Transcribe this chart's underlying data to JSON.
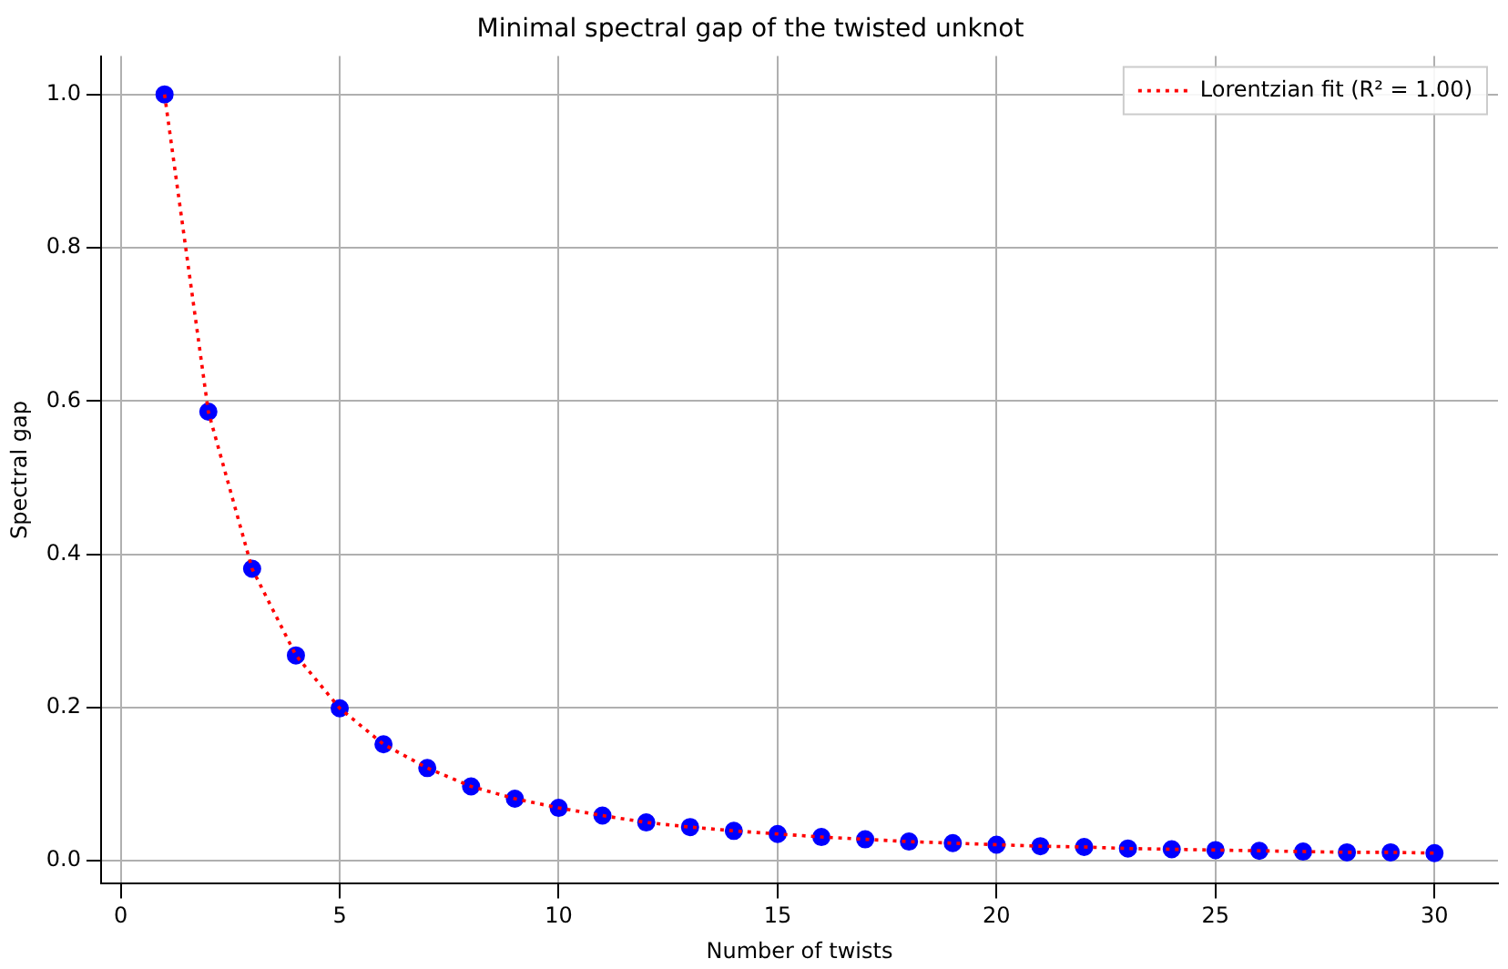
{
  "chart_data": {
    "type": "scatter",
    "title": "Minimal spectral gap of the twisted unknot",
    "xlabel": "Number of twists",
    "ylabel": "Spectral gap",
    "x": [
      1,
      2,
      3,
      4,
      5,
      6,
      7,
      8,
      9,
      10,
      11,
      12,
      13,
      14,
      15,
      16,
      17,
      18,
      19,
      20,
      21,
      22,
      23,
      24,
      25,
      26,
      27,
      28,
      29,
      30
    ],
    "series": [
      {
        "color": "#0000ff",
        "marker": "circle",
        "values": [
          1.0,
          0.586,
          0.381,
          0.268,
          0.199,
          0.152,
          0.121,
          0.097,
          0.081,
          0.069,
          0.059,
          0.05,
          0.044,
          0.039,
          0.035,
          0.031,
          0.028,
          0.025,
          0.023,
          0.021,
          0.019,
          0.018,
          0.016,
          0.015,
          0.014,
          0.013,
          0.012,
          0.011,
          0.011,
          0.01
        ]
      },
      {
        "type": "line",
        "name": "Lorentzian fit (R² = 1.00)",
        "color": "#ff0000",
        "line_style": "dotted",
        "marker": "none",
        "values": [
          1.0,
          0.586,
          0.381,
          0.268,
          0.199,
          0.152,
          0.121,
          0.097,
          0.081,
          0.069,
          0.059,
          0.05,
          0.044,
          0.039,
          0.035,
          0.031,
          0.028,
          0.025,
          0.023,
          0.021,
          0.019,
          0.018,
          0.016,
          0.015,
          0.014,
          0.013,
          0.012,
          0.011,
          0.011,
          0.01
        ]
      }
    ],
    "xlim": [
      -0.45,
      31.45
    ],
    "ylim": [
      -0.03,
      1.05
    ],
    "xticks": [
      0,
      5,
      10,
      15,
      20,
      25,
      30
    ],
    "yticks": [
      {
        "value": 0,
        "label": "0.0"
      },
      0.2,
      0.4,
      0.6,
      0.8,
      {
        "value": 1,
        "label": "1.0"
      }
    ],
    "grid": true,
    "legend": "top right"
  }
}
